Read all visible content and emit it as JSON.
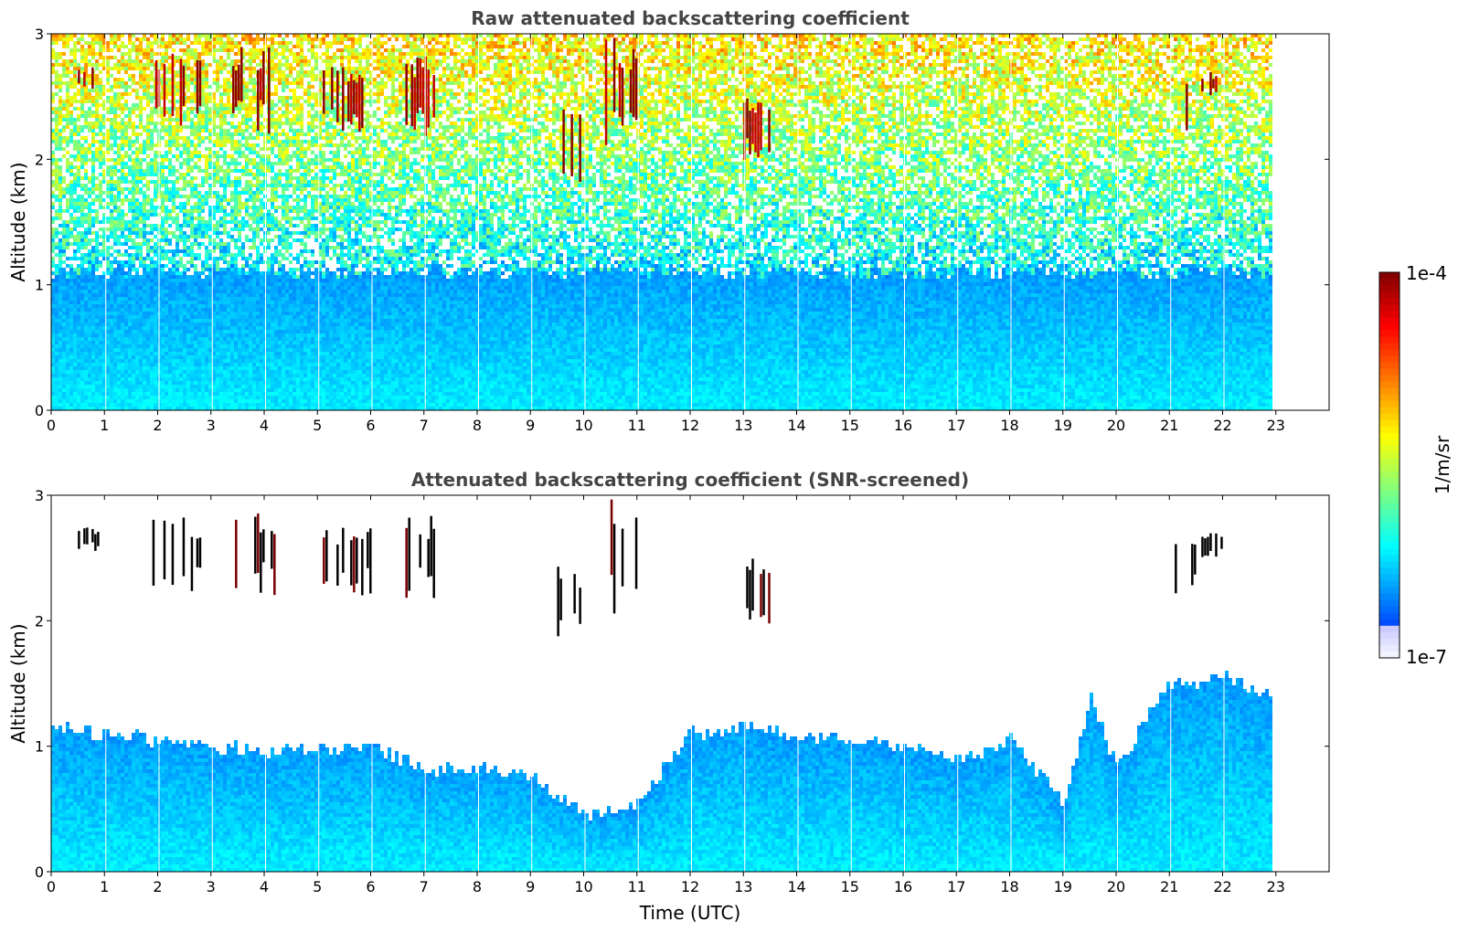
{
  "chart_data": [
    {
      "type": "heatmap",
      "title": "Raw attenuated backscattering coefficient",
      "xlabel": "",
      "ylabel": "Altitude (km)",
      "xlim": [
        0,
        24
      ],
      "ylim": [
        0,
        3
      ],
      "xticks": [
        "0",
        "1",
        "2",
        "3",
        "4",
        "5",
        "6",
        "7",
        "8",
        "9",
        "10",
        "11",
        "12",
        "13",
        "14",
        "15",
        "16",
        "17",
        "18",
        "19",
        "20",
        "21",
        "22",
        "23"
      ],
      "yticks": [
        "0",
        "1",
        "2",
        "3"
      ],
      "data_end_hour": 23,
      "color_scale": "log",
      "features": {
        "background_noise": true,
        "boundary_layer_top_km": 1.1,
        "cloud_layers": [
          {
            "start": 0.5,
            "end": 0.9,
            "base_km": 2.55,
            "top_km": 2.75
          },
          {
            "start": 1.9,
            "end": 2.8,
            "base_km": 2.2,
            "top_km": 2.85
          },
          {
            "start": 3.4,
            "end": 4.2,
            "base_km": 2.2,
            "top_km": 2.9
          },
          {
            "start": 5.1,
            "end": 6.0,
            "base_km": 2.2,
            "top_km": 2.75
          },
          {
            "start": 6.6,
            "end": 7.2,
            "base_km": 2.15,
            "top_km": 2.85
          },
          {
            "start": 9.5,
            "end": 10.0,
            "base_km": 1.8,
            "top_km": 2.45
          },
          {
            "start": 10.4,
            "end": 11.0,
            "base_km": 2.0,
            "top_km": 3.0
          },
          {
            "start": 13.0,
            "end": 13.5,
            "base_km": 1.95,
            "top_km": 2.5
          },
          {
            "start": 21.1,
            "end": 21.5,
            "base_km": 2.15,
            "top_km": 2.75
          },
          {
            "start": 21.6,
            "end": 22.0,
            "base_km": 2.5,
            "top_km": 2.7
          }
        ]
      }
    },
    {
      "type": "heatmap",
      "title": "Attenuated backscattering coefficient (SNR-screened)",
      "xlabel": "Time (UTC)",
      "ylabel": "Altitude (km)",
      "xlim": [
        0,
        24
      ],
      "ylim": [
        0,
        3
      ],
      "xticks": [
        "0",
        "1",
        "2",
        "3",
        "4",
        "5",
        "6",
        "7",
        "8",
        "9",
        "10",
        "11",
        "12",
        "13",
        "14",
        "15",
        "16",
        "17",
        "18",
        "19",
        "20",
        "21",
        "22",
        "23"
      ],
      "yticks": [
        "0",
        "1",
        "2",
        "3"
      ],
      "data_end_hour": 23,
      "color_scale": "log",
      "features": {
        "background_noise": false,
        "boundary_layer_top_km": [
          [
            0,
            1.15
          ],
          [
            1,
            1.1
          ],
          [
            2,
            1.05
          ],
          [
            3,
            1.0
          ],
          [
            4,
            0.95
          ],
          [
            5,
            1.0
          ],
          [
            6,
            1.0
          ],
          [
            7,
            0.8
          ],
          [
            8,
            0.85
          ],
          [
            9,
            0.75
          ],
          [
            10,
            0.45
          ],
          [
            11,
            0.55
          ],
          [
            12,
            1.1
          ],
          [
            13,
            1.15
          ],
          [
            14,
            1.1
          ],
          [
            15,
            1.05
          ],
          [
            16,
            1.0
          ],
          [
            17,
            0.9
          ],
          [
            18,
            1.05
          ],
          [
            19,
            0.55
          ],
          [
            19.5,
            1.4
          ],
          [
            20,
            0.8
          ],
          [
            20.5,
            1.2
          ],
          [
            21,
            1.5
          ],
          [
            22,
            1.55
          ],
          [
            23,
            1.4
          ]
        ],
        "cloud_layers": [
          {
            "start": 0.5,
            "end": 0.9,
            "base_km": 2.55,
            "top_km": 2.75
          },
          {
            "start": 1.9,
            "end": 2.8,
            "base_km": 2.2,
            "top_km": 2.85
          },
          {
            "start": 3.4,
            "end": 4.2,
            "base_km": 2.2,
            "top_km": 2.9
          },
          {
            "start": 5.1,
            "end": 6.0,
            "base_km": 2.2,
            "top_km": 2.75
          },
          {
            "start": 6.6,
            "end": 7.2,
            "base_km": 2.15,
            "top_km": 2.85
          },
          {
            "start": 9.5,
            "end": 10.0,
            "base_km": 1.8,
            "top_km": 2.45
          },
          {
            "start": 10.4,
            "end": 11.0,
            "base_km": 2.0,
            "top_km": 3.0
          },
          {
            "start": 13.0,
            "end": 13.5,
            "base_km": 1.95,
            "top_km": 2.5
          },
          {
            "start": 21.1,
            "end": 21.5,
            "base_km": 2.15,
            "top_km": 2.75
          },
          {
            "start": 21.6,
            "end": 22.0,
            "base_km": 2.5,
            "top_km": 2.7
          }
        ]
      }
    }
  ],
  "colorbar": {
    "label": "1/m/sr",
    "max_label": "1e-4",
    "min_label": "1e-7",
    "colormap": "jet"
  }
}
